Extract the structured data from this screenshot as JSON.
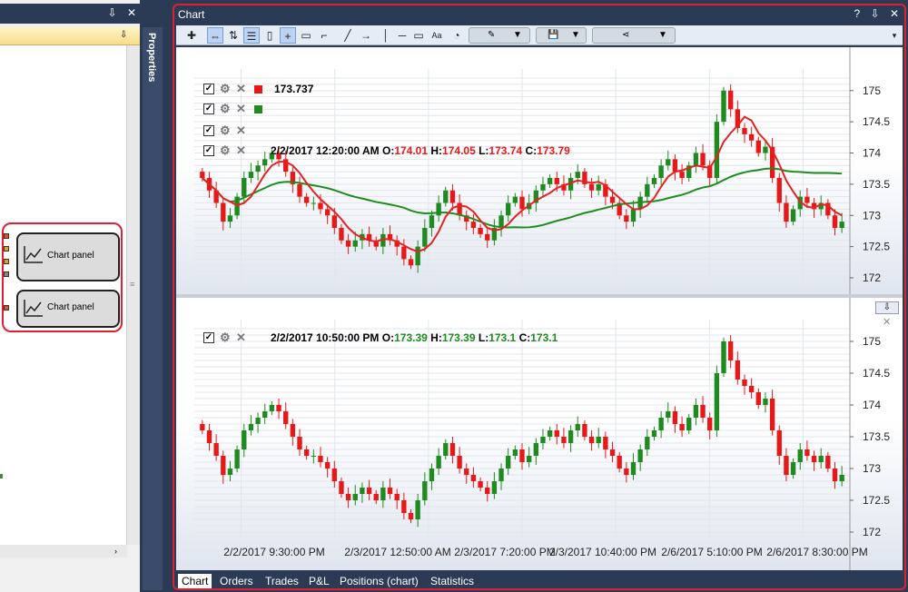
{
  "left_panel": {
    "chart_panels": [
      {
        "label": "Chart panel"
      },
      {
        "label": "Chart panel"
      }
    ]
  },
  "properties_tab": {
    "label": "Properties"
  },
  "chart_window": {
    "title": "Chart",
    "title_buttons": [
      "?",
      "⇩",
      "✕"
    ]
  },
  "pane1": {
    "indicator1_value": "173.737",
    "ohlc": {
      "time": "2/2/2017 12:20:00 AM",
      "o_label": "O:",
      "o": "174.01",
      "h_label": "H:",
      "h": "174.05",
      "l_label": "L:",
      "l": "173.74",
      "c_label": "C:",
      "c": "173.79"
    },
    "y_ticks": [
      "175",
      "174.5",
      "174",
      "173.5",
      "173",
      "172.5",
      "172"
    ]
  },
  "pane2": {
    "ohlc": {
      "time": "2/2/2017 10:50:00 PM",
      "o_label": "O:",
      "o": "173.39",
      "h_label": "H:",
      "h": "173.39",
      "l_label": "L:",
      "l": "173.1",
      "c_label": "C:",
      "c": "173.1"
    },
    "y_ticks": [
      "175",
      "174.5",
      "174",
      "173.5",
      "173",
      "172.5",
      "172"
    ]
  },
  "x_ticks": [
    "2/2/2017 9:30:00 PM",
    "2/3/2017 12:50:00 AM",
    "2/3/2017 7:20:00 PM",
    "2/3/2017 10:40:00 PM",
    "2/6/2017 5:10:00 PM",
    "2/6/2017 8:30:00 PM"
  ],
  "bottom_tabs": [
    "Chart",
    "Orders",
    "Trades",
    "P&L",
    "Positions (chart)",
    "Statistics"
  ],
  "colors": {
    "up": "#1f8a1f",
    "down": "#e81818",
    "sma_red": "#e82020",
    "sma_green": "#1e8c1e",
    "frame": "#2b3a55",
    "highlight": "#e02030"
  },
  "chart_data": {
    "type": "candlestick",
    "ylim": [
      172,
      175.2
    ],
    "closes": [
      173.6,
      173.4,
      173.2,
      172.9,
      173.0,
      173.3,
      173.6,
      173.7,
      173.8,
      173.9,
      174.0,
      173.9,
      173.7,
      173.5,
      173.3,
      173.2,
      173.2,
      173.1,
      173.0,
      172.8,
      172.6,
      172.5,
      172.6,
      172.7,
      172.6,
      172.5,
      172.7,
      172.6,
      172.5,
      172.3,
      172.2,
      172.5,
      172.8,
      173.0,
      173.2,
      173.4,
      173.2,
      173.0,
      172.9,
      172.8,
      172.7,
      172.6,
      172.8,
      173.0,
      173.2,
      173.3,
      173.1,
      173.2,
      173.4,
      173.5,
      173.6,
      173.5,
      173.4,
      173.6,
      173.7,
      173.5,
      173.4,
      173.5,
      173.3,
      173.2,
      173.0,
      172.9,
      173.1,
      173.3,
      173.5,
      173.6,
      173.8,
      173.9,
      173.7,
      173.6,
      173.8,
      174.0,
      173.8,
      173.6,
      174.5,
      175.0,
      174.7,
      174.4,
      174.3,
      174.2,
      174.0,
      174.1,
      173.6,
      173.2,
      172.9,
      173.1,
      173.3,
      173.2,
      173.1,
      173.2,
      173.0,
      172.8,
      172.9
    ]
  }
}
